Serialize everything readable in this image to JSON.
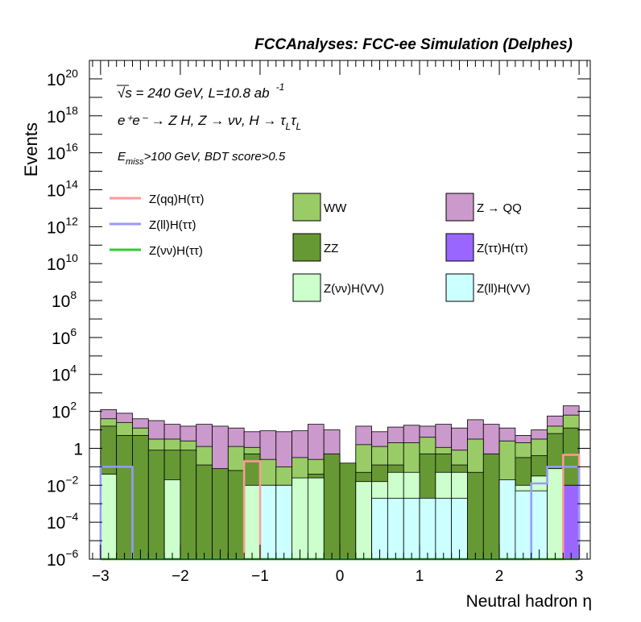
{
  "chart_data": {
    "type": "bar",
    "title": "FCCAnalyses: FCC-ee Simulation (Delphes)",
    "xlabel": "Neutral hadron η",
    "ylabel": "Events",
    "xlim": [
      -3.14,
      3.14
    ],
    "ylim_log10": [
      -6,
      21
    ],
    "log_y": true,
    "x_ticks": [
      {
        "v": -3,
        "label": "−3"
      },
      {
        "v": -2,
        "label": "−2"
      },
      {
        "v": -1,
        "label": "−1"
      },
      {
        "v": 0,
        "label": "0"
      },
      {
        "v": 1,
        "label": "1"
      },
      {
        "v": 2,
        "label": "2"
      },
      {
        "v": 3,
        "label": "3"
      }
    ],
    "y_ticks": [
      {
        "e": -6,
        "mant": "10",
        "exp": "−6"
      },
      {
        "e": -4,
        "mant": "10",
        "exp": "−4"
      },
      {
        "e": -2,
        "mant": "10",
        "exp": "−2"
      },
      {
        "e": 0,
        "mant": "1",
        "exp": ""
      },
      {
        "e": 2,
        "mant": "10",
        "exp": "2"
      },
      {
        "e": 4,
        "mant": "10",
        "exp": "4"
      },
      {
        "e": 6,
        "mant": "10",
        "exp": "6"
      },
      {
        "e": 8,
        "mant": "10",
        "exp": "8"
      },
      {
        "e": 10,
        "mant": "10",
        "exp": "10"
      },
      {
        "e": 12,
        "mant": "10",
        "exp": "12"
      },
      {
        "e": 14,
        "mant": "10",
        "exp": "14"
      },
      {
        "e": 16,
        "mant": "10",
        "exp": "16"
      },
      {
        "e": 18,
        "mant": "10",
        "exp": "18"
      },
      {
        "e": 20,
        "mant": "10",
        "exp": "20"
      }
    ],
    "annotations": {
      "energy": "√s = 240 GeV, L=10.8 ab",
      "energy_sup": "-1",
      "process": "e⁺e⁻ → Z H, Z → νν, H → τ",
      "cuts": "E",
      "cuts_sub": "miss",
      "cuts_rest": ">100 GeV, BDT score>0.5"
    },
    "bins": [
      -3.0,
      -2.8,
      -2.6,
      -2.4,
      -2.2,
      -2.0,
      -1.8,
      -1.6,
      -1.4,
      -1.2,
      -1.0,
      -0.8,
      -0.6,
      -0.4,
      -0.2,
      0.0,
      0.2,
      0.4,
      0.6,
      0.8,
      1.0,
      1.2,
      1.4,
      1.6,
      1.8,
      2.0,
      2.2,
      2.4,
      2.6,
      2.8,
      3.0
    ],
    "stack_log10_tops": [
      {
        "name": "Z(ll)H(VV)",
        "color": "#ccffff",
        "values": [
          -6,
          -6,
          -6,
          -6,
          -6,
          -6,
          -6,
          -6,
          -6,
          -6,
          -2,
          -2,
          -6,
          -6,
          -6,
          -6,
          -6,
          -2.7,
          -2.7,
          -2.7,
          -2.7,
          -2.7,
          -2.7,
          -6,
          -6,
          -1.7,
          -2.3,
          -2.3,
          -6,
          -6
        ]
      },
      {
        "name": "Z(ττ)H(ττ)",
        "color": "#9966ff",
        "values": [
          -6,
          -6,
          -6,
          -6,
          -6,
          -6,
          -6,
          -6,
          -6,
          -6,
          -6,
          -6,
          -6,
          -6,
          -6,
          -6,
          -6,
          -6,
          -6,
          -6,
          -6,
          -6,
          -6,
          -6,
          -6,
          -6,
          -6,
          -6,
          -6,
          -2
        ]
      },
      {
        "name": "Z(νν)H(VV)",
        "color": "#ccffcc",
        "values": [
          -1.4,
          -6,
          -6,
          -6,
          -1.7,
          -6,
          -6,
          -6,
          -6,
          -2,
          -2,
          -2,
          -1.6,
          -1.6,
          -6,
          -6,
          -1.8,
          -1.8,
          -1.3,
          -1.3,
          -6,
          -1.3,
          -1.3,
          -6,
          -6,
          -1.7,
          -2,
          -1.5,
          -1.1,
          -2
        ]
      },
      {
        "name": "ZZ",
        "color": "#669933",
        "values": [
          1.2,
          0.7,
          0.7,
          -0.1,
          -0.1,
          -0.1,
          -0.9,
          -1.1,
          -1.2,
          -0.3,
          -2.1,
          -2.2,
          -2.1,
          -1.4,
          -0.3,
          -0.8,
          -1.3,
          -0.9,
          -0.9,
          -1.4,
          -0.3,
          -0.3,
          -0.9,
          -1.3,
          -0.3,
          -1.7,
          -0.5,
          -0.4,
          0.8,
          1.1
        ]
      },
      {
        "name": "WW",
        "color": "#99cc66",
        "values": [
          1.6,
          1.4,
          1.1,
          0.5,
          0.5,
          0.4,
          0.1,
          -6,
          0.1,
          0.05,
          -0.6,
          -1,
          -0.5,
          -0.6,
          -6,
          -6,
          0.2,
          0.1,
          0.3,
          0.3,
          0.6,
          0.05,
          -0.1,
          0.5,
          -6,
          0.4,
          0.3,
          0.5,
          1.2,
          1.8
        ]
      },
      {
        "name": "Z → QQ",
        "color": "#cc99cc",
        "values": [
          2.1,
          1.9,
          1.6,
          1.5,
          1.3,
          1.2,
          1.3,
          1.2,
          1.1,
          0.9,
          0.95,
          0.9,
          0.95,
          1.3,
          1.0,
          -6,
          1.2,
          0.9,
          1.15,
          1.25,
          1.2,
          1.3,
          1.1,
          1.55,
          1.3,
          1.1,
          0.7,
          1.0,
          1.75,
          2.3
        ]
      }
    ],
    "signals_log10": [
      {
        "name": "Z(qq)H(ττ)",
        "color": "#ff9999",
        "values": [
          -6,
          -6,
          -6,
          -6,
          -6,
          -6,
          -6,
          -6,
          -6,
          -0.7,
          -6,
          -6,
          -6,
          -6,
          -6,
          -6,
          -6,
          -6,
          -6,
          -6,
          -6,
          -6,
          -6,
          -6,
          -6,
          -6,
          -6,
          -6,
          -6,
          -0.35
        ]
      },
      {
        "name": "Z(ll)H(ττ)",
        "color": "#9999ff",
        "values": [
          -1.0,
          -1.0,
          -6,
          -6,
          -6,
          -6,
          -6,
          -6,
          -6,
          -6,
          -6,
          -6,
          -6,
          -6,
          -6,
          -6,
          -6,
          -6,
          -6,
          -6,
          -6,
          -6,
          -6,
          -6,
          -6,
          -6,
          -6,
          -1.9,
          -1.0,
          -1.0
        ]
      },
      {
        "name": "Z(νν)H(ττ)",
        "color": "#33cc33",
        "values": [
          -6,
          -6,
          -6,
          -6,
          -6,
          -6,
          -6,
          -6,
          -6,
          -6,
          -6,
          -6,
          -6,
          -6,
          -6,
          -6,
          -6,
          -6,
          -6,
          -6,
          -6,
          -6,
          -6,
          -6,
          -6,
          -6,
          -6,
          -6,
          -6,
          -6
        ]
      }
    ],
    "legend_lines": [
      {
        "label": "Z(qq)H(ττ)",
        "color": "#ff9999"
      },
      {
        "label": "Z(ll)H(ττ)",
        "color": "#9999ff"
      },
      {
        "label": "Z(νν)H(ττ)",
        "color": "#33cc33"
      }
    ],
    "legend_boxes": [
      {
        "label": "WW",
        "color": "#99cc66"
      },
      {
        "label": "Z → QQ",
        "color": "#cc99cc"
      },
      {
        "label": "ZZ",
        "color": "#669933"
      },
      {
        "label": "Z(ττ)H(ττ)",
        "color": "#9966ff"
      },
      {
        "label": "Z(νν)H(VV)",
        "color": "#ccffcc"
      },
      {
        "label": "Z(ll)H(VV)",
        "color": "#ccffff"
      }
    ]
  }
}
